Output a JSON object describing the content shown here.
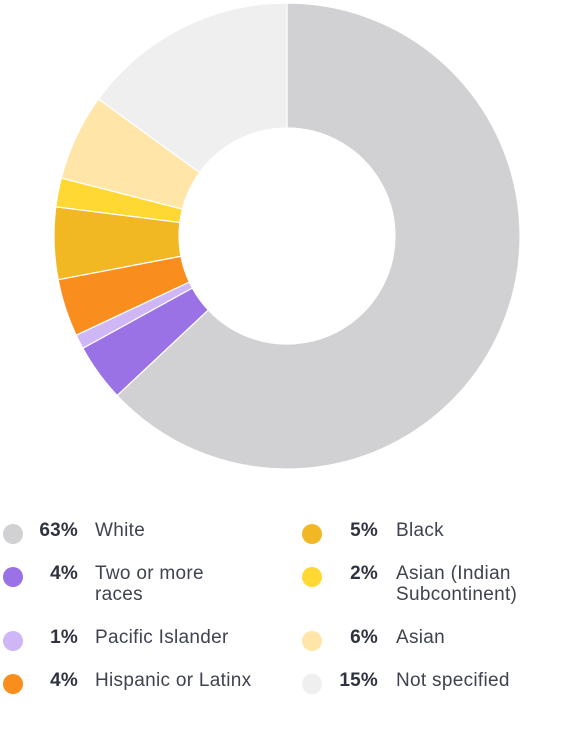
{
  "chart_data": {
    "type": "pie",
    "variant": "donut",
    "title": "",
    "slices": [
      {
        "label": "White",
        "value": 63,
        "pct_label": "63%",
        "color": "#d1d1d3"
      },
      {
        "label": "Two or more races",
        "value": 4,
        "pct_label": "4%",
        "color": "#9b72e6"
      },
      {
        "label": "Pacific Islander",
        "value": 1,
        "pct_label": "1%",
        "color": "#cfb6f7"
      },
      {
        "label": "Hispanic or Latinx",
        "value": 4,
        "pct_label": "4%",
        "color": "#f98d1e"
      },
      {
        "label": "Black",
        "value": 5,
        "pct_label": "5%",
        "color": "#f2b824"
      },
      {
        "label": "Asian (Indian Subcontinent)",
        "value": 2,
        "pct_label": "2%",
        "color": "#ffd833"
      },
      {
        "label": "Asian",
        "value": 6,
        "pct_label": "6%",
        "color": "#ffe5a8"
      },
      {
        "label": "Not specified",
        "value": 15,
        "pct_label": "15%",
        "color": "#efefef"
      }
    ],
    "legend_placement": "bottom, two columns"
  }
}
